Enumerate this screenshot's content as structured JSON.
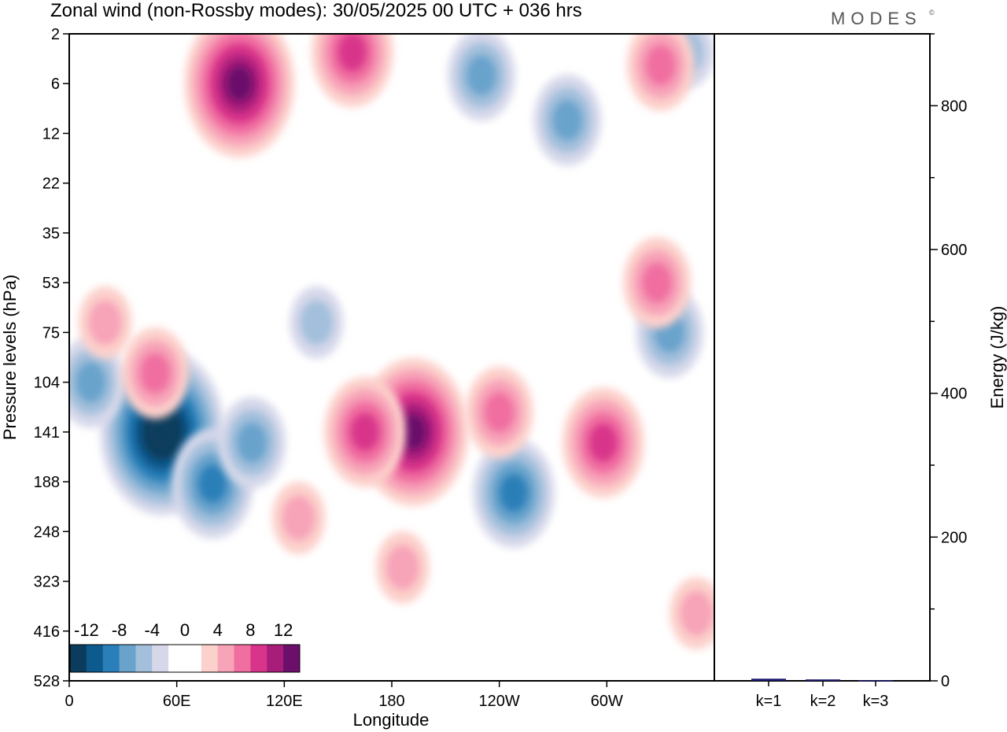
{
  "title": "Zonal wind (non-Rossby modes):  30/05/2025  00 UTC  + 036 hrs",
  "logo": "MODES",
  "logo_mark": "©",
  "chart_data": [
    {
      "type": "heatmap",
      "title": "Zonal wind (non-Rossby modes):  30/05/2025  00 UTC  + 036 hrs",
      "xlabel": "Longitude",
      "ylabel": "Pressure levels (hPa)",
      "x_ticks": [
        "0",
        "60E",
        "120E",
        "180",
        "120W",
        "60W"
      ],
      "x_tick_values": [
        0,
        60,
        120,
        180,
        240,
        300
      ],
      "xlim": [
        0,
        360
      ],
      "y_ticks": [
        "2",
        "6",
        "12",
        "22",
        "35",
        "53",
        "75",
        "104",
        "141",
        "188",
        "248",
        "323",
        "416",
        "528"
      ],
      "colorbar": {
        "tick_labels": [
          "-12",
          "-8",
          "-4",
          "0",
          "4",
          "8",
          "12"
        ],
        "levels": [
          -14,
          -12,
          -10,
          -8,
          -6,
          -4,
          -2,
          0,
          2,
          4,
          6,
          8,
          10,
          12,
          14
        ],
        "colors": [
          "#0b3c5d",
          "#0d5a8f",
          "#2a7fb8",
          "#69a3cc",
          "#a3bfdb",
          "#d6d8ea",
          "#ffffff",
          "#ffffff",
          "#fcd0cb",
          "#f7a3b8",
          "#f06ea0",
          "#d8358a",
          "#a81d7a",
          "#6b0f6b"
        ]
      },
      "features": [
        {
          "lon": 52,
          "level": 141,
          "value": -14
        },
        {
          "lon": 80,
          "level": 190,
          "value": -8
        },
        {
          "lon": 102,
          "level": 150,
          "value": -6
        },
        {
          "lon": 12,
          "level": 104,
          "value": -6
        },
        {
          "lon": 248,
          "level": 200,
          "value": -8
        },
        {
          "lon": 278,
          "level": 10,
          "value": -6
        },
        {
          "lon": 230,
          "level": 5,
          "value": -6
        },
        {
          "lon": 335,
          "level": 75,
          "value": -6
        },
        {
          "lon": 138,
          "level": 70,
          "value": -4
        },
        {
          "lon": 345,
          "level": 3,
          "value": -4
        },
        {
          "lon": 192,
          "level": 141,
          "value": 12
        },
        {
          "lon": 165,
          "level": 141,
          "value": 8
        },
        {
          "lon": 240,
          "level": 125,
          "value": 6
        },
        {
          "lon": 298,
          "level": 150,
          "value": 8
        },
        {
          "lon": 48,
          "level": 98,
          "value": 6
        },
        {
          "lon": 95,
          "level": 6,
          "value": 12
        },
        {
          "lon": 158,
          "level": 3,
          "value": 8
        },
        {
          "lon": 186,
          "level": 300,
          "value": 4
        },
        {
          "lon": 128,
          "level": 230,
          "value": 4
        },
        {
          "lon": 328,
          "level": 53,
          "value": 6
        },
        {
          "lon": 330,
          "level": 4,
          "value": 6
        },
        {
          "lon": 20,
          "level": 70,
          "value": 4
        },
        {
          "lon": 350,
          "level": 380,
          "value": 4
        }
      ]
    },
    {
      "type": "bar",
      "ylabel": "Energy (J/kg)",
      "categories": [
        "k=1",
        "k=2",
        "k=3"
      ],
      "values": [
        3,
        2,
        1
      ],
      "ylim": [
        0,
        900
      ],
      "y_ticks": [
        0,
        200,
        400,
        600,
        800
      ],
      "bar_color": "#1a1a6e"
    }
  ]
}
